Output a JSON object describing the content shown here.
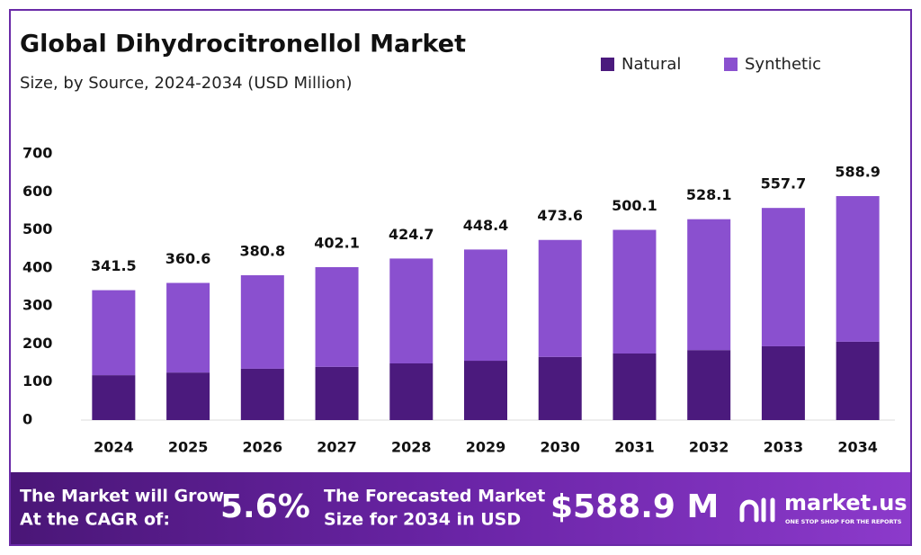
{
  "chart_data": {
    "type": "stacked-bar",
    "title": "Global Dihydrocitronellol Market",
    "subtitle": "Size, by Source, 2024-2034 (USD Million)",
    "categories": [
      "2024",
      "2025",
      "2026",
      "2027",
      "2028",
      "2029",
      "2030",
      "2031",
      "2032",
      "2033",
      "2034"
    ],
    "series": [
      {
        "name": "Natural",
        "color": "#4b1a7d",
        "values": [
          118,
          125,
          135,
          140,
          149,
          156,
          166,
          175,
          184,
          194,
          206
        ]
      },
      {
        "name": "Synthetic",
        "color": "#8a50cf",
        "values": [
          223.5,
          235.6,
          245.8,
          262.1,
          275.7,
          292.4,
          307.6,
          325.1,
          344.1,
          363.7,
          382.9
        ]
      }
    ],
    "totals": [
      341.5,
      360.6,
      380.8,
      402.1,
      424.7,
      448.4,
      473.6,
      500.1,
      528.1,
      557.7,
      588.9
    ],
    "ylim": [
      0,
      700
    ],
    "yticks": [
      0,
      100,
      200,
      300,
      400,
      500,
      600,
      700
    ],
    "grid": false,
    "legend": "top-right"
  },
  "banner": {
    "cagr_label": [
      "The Market will Grow",
      "At the CAGR of:"
    ],
    "cagr": "5.6%",
    "forecast_label": [
      "The Forecasted Market",
      "Size for 2034 in USD"
    ],
    "forecast": "$588.9 M",
    "brand": "market.us",
    "tagline": "ONE STOP SHOP FOR THE REPORTS"
  }
}
